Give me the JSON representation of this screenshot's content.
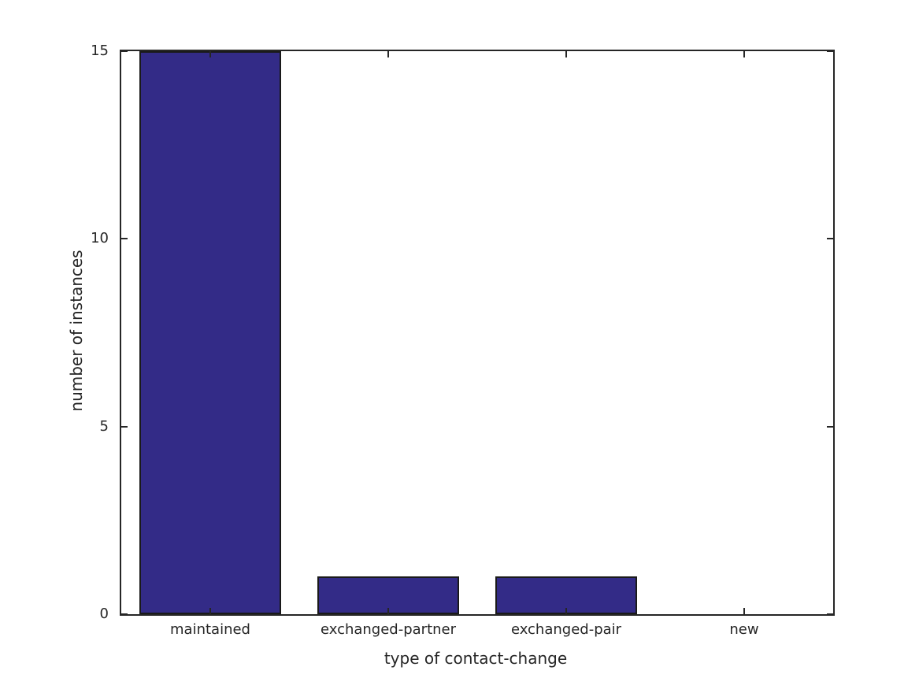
{
  "chart_data": {
    "type": "bar",
    "title": "",
    "categories": [
      "maintained",
      "exchanged-partner",
      "exchanged-pair",
      "new"
    ],
    "values": [
      15,
      1,
      1,
      0
    ],
    "xlabel": "type of contact-change",
    "ylabel": "number of instances",
    "ylim": [
      0,
      15
    ],
    "yticks": [
      0,
      5,
      10,
      15
    ],
    "bar_width_fraction": 0.8,
    "grid": false,
    "legend_position": "none",
    "colors": {
      "bar_fill": "#332B87",
      "bar_edge": "#1a1a1a",
      "axis": "#262626",
      "text": "#262626",
      "background": "#ffffff"
    }
  }
}
